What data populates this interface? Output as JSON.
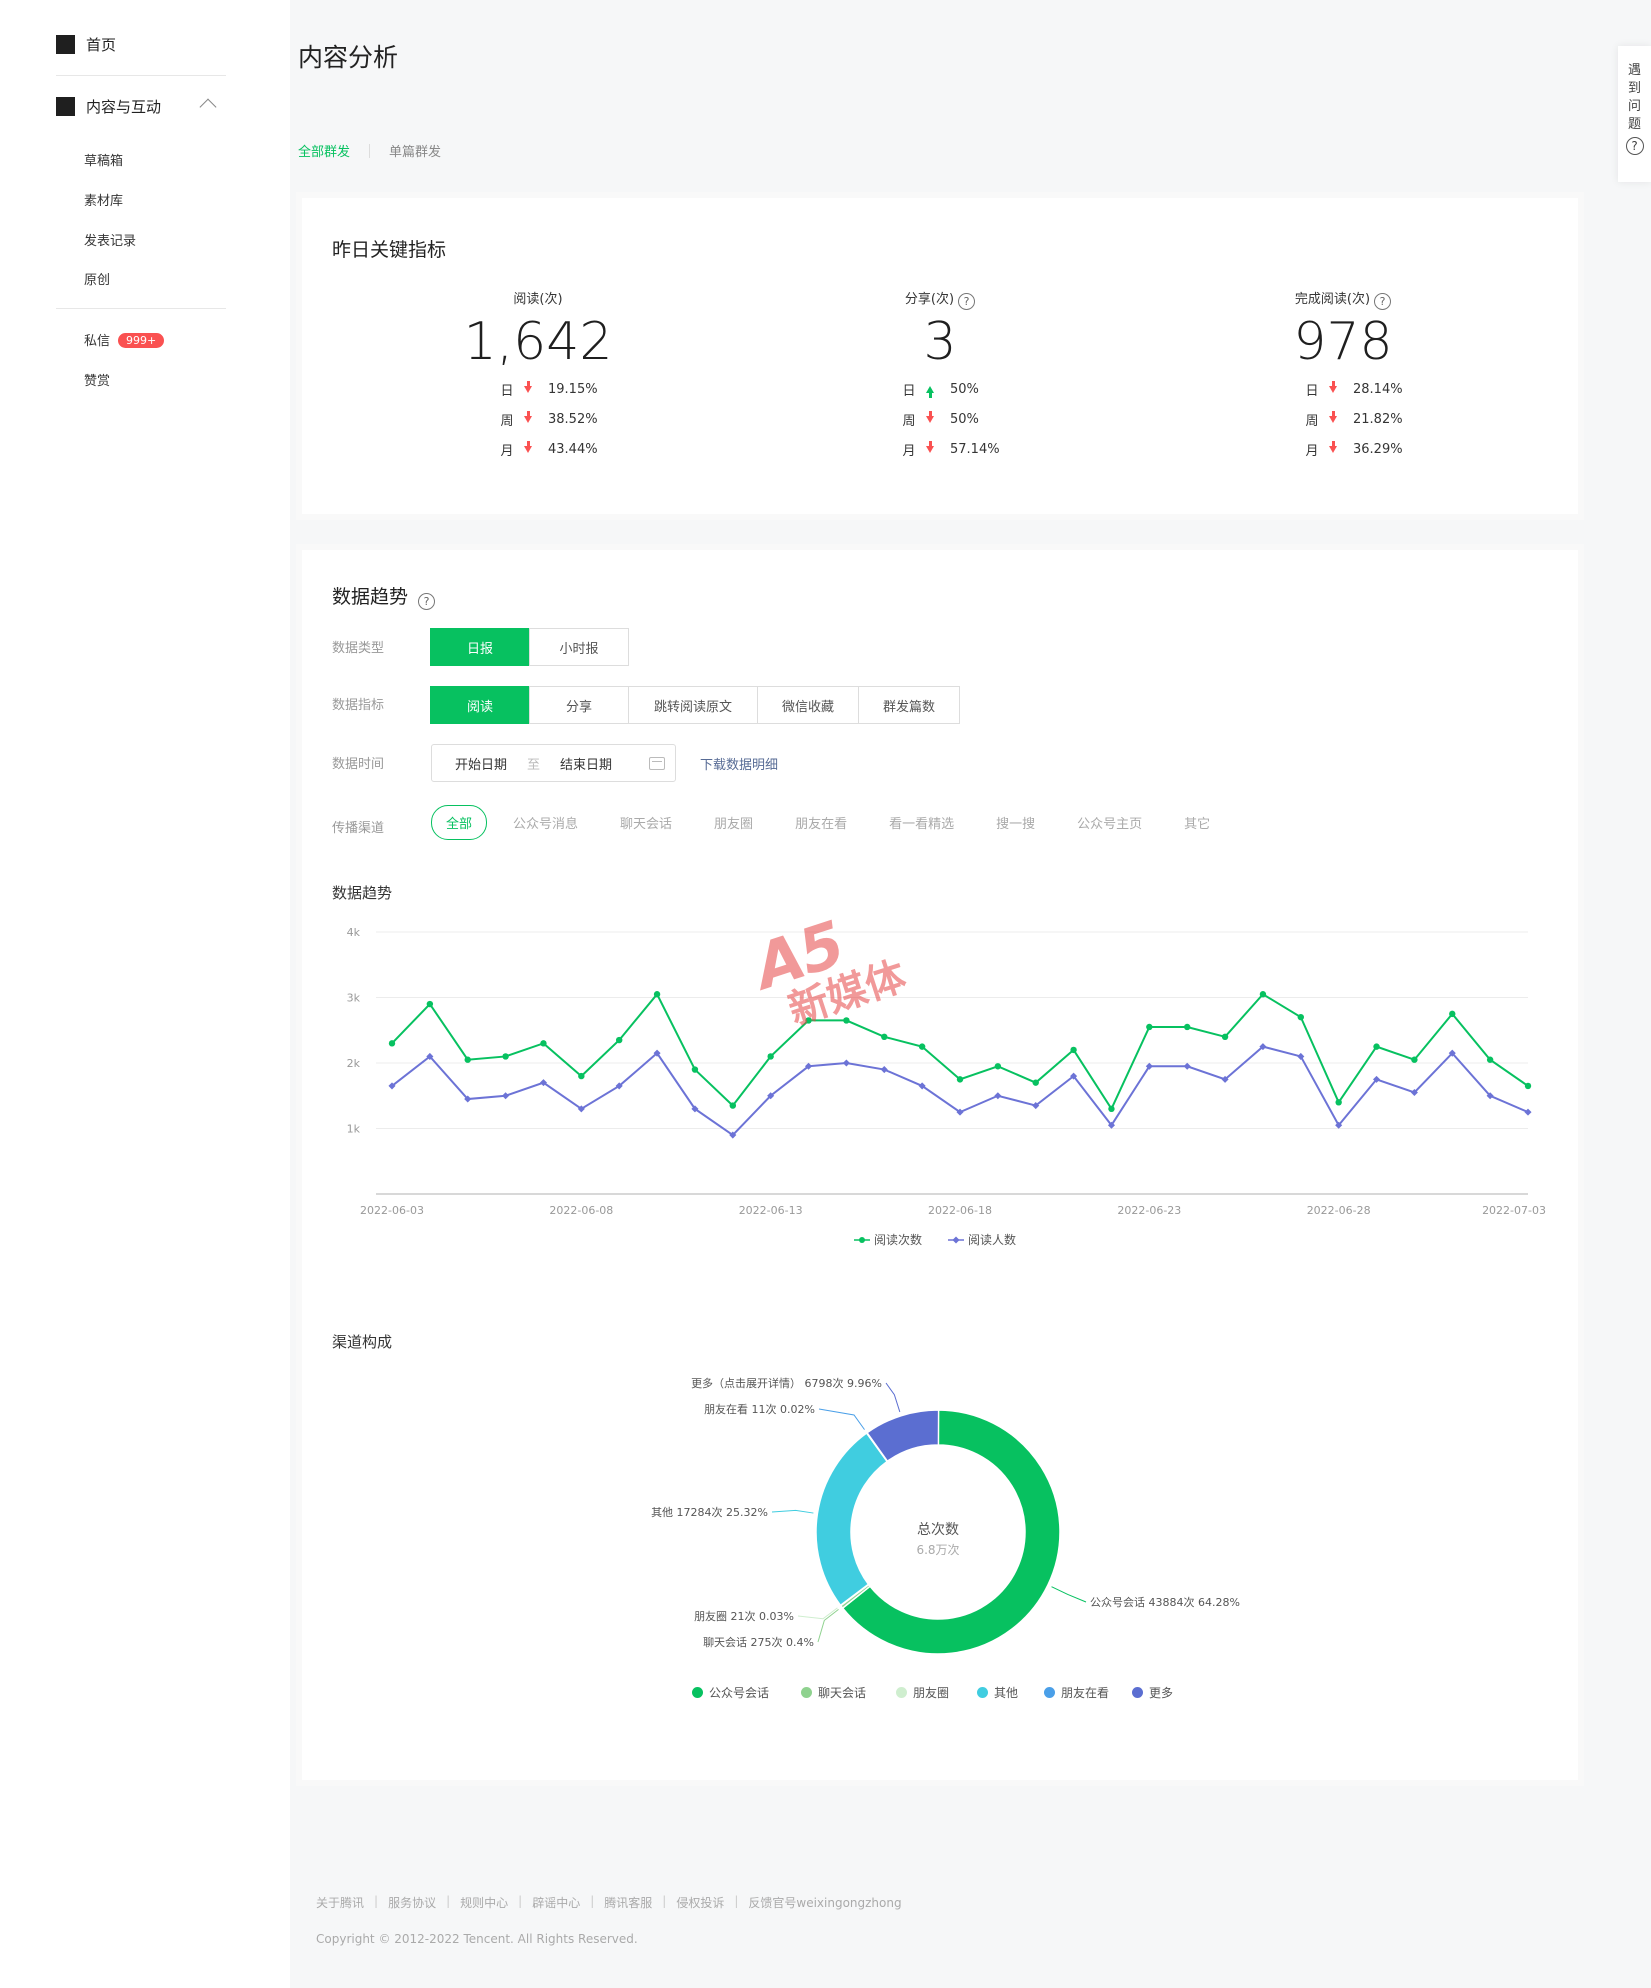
{
  "sidebar": {
    "home": "首页",
    "content_interaction": "内容与互动",
    "sub_items": [
      "草稿箱",
      "素材库",
      "发表记录",
      "原创"
    ],
    "messages": "私信",
    "messages_badge": "999+",
    "rewards": "赞赏"
  },
  "page": {
    "title": "内容分析",
    "tabs": [
      "全部群发",
      "单篇群发"
    ]
  },
  "key_metrics": {
    "title": "昨日关键指标",
    "items": [
      {
        "label": "阅读(次)",
        "value": "1,642",
        "trends": [
          {
            "period": "日",
            "dir": "down",
            "pct": "19.15%"
          },
          {
            "period": "周",
            "dir": "down",
            "pct": "38.52%"
          },
          {
            "period": "月",
            "dir": "down",
            "pct": "43.44%"
          }
        ]
      },
      {
        "label": "分享(次)",
        "value": "3",
        "trends": [
          {
            "period": "日",
            "dir": "up",
            "pct": "50%"
          },
          {
            "period": "周",
            "dir": "down",
            "pct": "50%"
          },
          {
            "period": "月",
            "dir": "down",
            "pct": "57.14%"
          }
        ]
      },
      {
        "label": "完成阅读(次)",
        "value": "978",
        "trends": [
          {
            "period": "日",
            "dir": "down",
            "pct": "28.14%"
          },
          {
            "period": "周",
            "dir": "down",
            "pct": "21.82%"
          },
          {
            "period": "月",
            "dir": "down",
            "pct": "36.29%"
          }
        ]
      }
    ]
  },
  "trend": {
    "title": "数据趋势",
    "labels": {
      "type": "数据类型",
      "metric": "数据指标",
      "time": "数据时间",
      "channel": "传播渠道"
    },
    "type_options": [
      "日报",
      "小时报"
    ],
    "metric_options": [
      "阅读",
      "分享",
      "跳转阅读原文",
      "微信收藏",
      "群发篇数"
    ],
    "date": {
      "start": "开始日期",
      "to": "至",
      "end": "结束日期"
    },
    "download": "下载数据明细",
    "channels": [
      "全部",
      "公众号消息",
      "聊天会话",
      "朋友圈",
      "朋友在看",
      "看一看精选",
      "搜一搜",
      "公众号主页",
      "其它"
    ],
    "chart_title": "数据趋势"
  },
  "chart_data": [
    {
      "type": "line",
      "x": [
        "2022-06-03",
        "2022-06-04",
        "2022-06-05",
        "2022-06-06",
        "2022-06-07",
        "2022-06-08",
        "2022-06-09",
        "2022-06-10",
        "2022-06-11",
        "2022-06-12",
        "2022-06-13",
        "2022-06-14",
        "2022-06-15",
        "2022-06-16",
        "2022-06-17",
        "2022-06-18",
        "2022-06-19",
        "2022-06-20",
        "2022-06-21",
        "2022-06-22",
        "2022-06-23",
        "2022-06-24",
        "2022-06-25",
        "2022-06-26",
        "2022-06-27",
        "2022-06-28",
        "2022-06-29",
        "2022-06-30",
        "2022-07-01",
        "2022-07-02",
        "2022-07-03"
      ],
      "x_ticks": [
        "2022-06-03",
        "2022-06-08",
        "2022-06-13",
        "2022-06-18",
        "2022-06-23",
        "2022-06-28",
        "2022-07-03"
      ],
      "y_ticks": [
        "1k",
        "2k",
        "3k",
        "4k"
      ],
      "ylim": [
        0,
        4000
      ],
      "grid": true,
      "legend_position": "bottom",
      "series": [
        {
          "name": "阅读次数",
          "color": "#07c160",
          "values": [
            2300,
            2900,
            2050,
            2100,
            2300,
            1800,
            2350,
            3050,
            1900,
            1350,
            2100,
            2650,
            2650,
            2400,
            2250,
            1750,
            1950,
            1700,
            2200,
            1300,
            2550,
            2550,
            2400,
            3050,
            2700,
            1400,
            2250,
            2050,
            2750,
            2050,
            1650
          ]
        },
        {
          "name": "阅读人数",
          "color": "#6c73d6",
          "values": [
            1650,
            2100,
            1450,
            1500,
            1700,
            1300,
            1650,
            2150,
            1300,
            900,
            1500,
            1950,
            2000,
            1900,
            1650,
            1250,
            1500,
            1350,
            1800,
            1050,
            1950,
            1950,
            1750,
            2250,
            2100,
            1050,
            1750,
            1550,
            2150,
            1500,
            1250
          ]
        }
      ]
    },
    {
      "type": "pie",
      "title": "渠道构成",
      "center_title": "总次数",
      "center_value": "6.8万次",
      "slices": [
        {
          "name": "公众号会话",
          "count": 43884,
          "percent": 64.28,
          "color": "#07c160",
          "label": "公众号会话 43884次 64.28%"
        },
        {
          "name": "聊天会话",
          "count": 275,
          "percent": 0.4,
          "color": "#8fd28f",
          "label": "聊天会话 275次 0.4%"
        },
        {
          "name": "朋友圈",
          "count": 21,
          "percent": 0.03,
          "color": "#cfeecf",
          "label": "朋友圈 21次 0.03%"
        },
        {
          "name": "其他",
          "count": 17284,
          "percent": 25.32,
          "color": "#40cde0",
          "label": "其他 17284次 25.32%"
        },
        {
          "name": "朋友在看",
          "count": 11,
          "percent": 0.02,
          "color": "#4a9fe8",
          "label": "朋友在看 11次 0.02%"
        },
        {
          "name": "更多",
          "count": 6798,
          "percent": 9.96,
          "color": "#5b6ed1",
          "label": "更多（点击展开详情） 6798次 9.96%"
        }
      ]
    }
  ],
  "watermark": {
    "top": "A5",
    "bottom": "新媒体"
  },
  "footer": {
    "links": [
      "关于腾讯",
      "服务协议",
      "规则中心",
      "辟谣中心",
      "腾讯客服",
      "侵权投诉",
      "反馈官号weixingongzhong"
    ],
    "copyright": "Copyright © 2012-2022 Tencent. All Rights Reserved."
  },
  "help": {
    "chars": [
      "遇",
      "到",
      "问",
      "题"
    ],
    "icon": "?"
  }
}
